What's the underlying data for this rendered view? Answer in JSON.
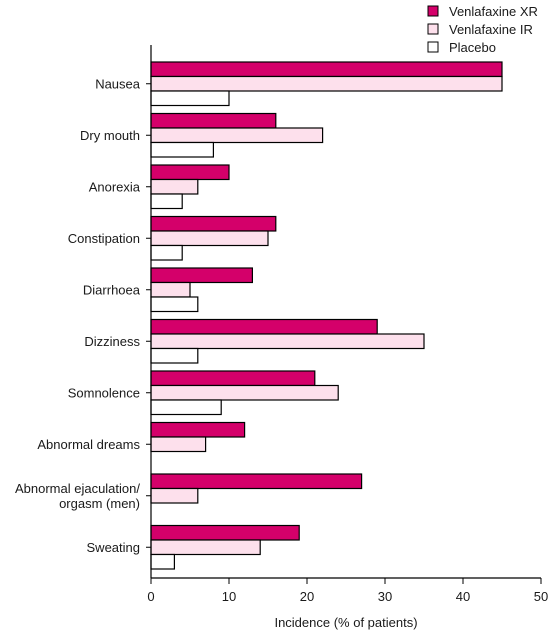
{
  "chart_data": {
    "type": "bar",
    "orientation": "horizontal",
    "categories": [
      [
        "Nausea"
      ],
      [
        "Dry mouth"
      ],
      [
        "Anorexia"
      ],
      [
        "Constipation"
      ],
      [
        "Diarrhoea"
      ],
      [
        "Dizziness"
      ],
      [
        "Somnolence"
      ],
      [
        "Abnormal dreams"
      ],
      [
        "Abnormal ejaculation/",
        "orgasm (men)"
      ],
      [
        "Sweating"
      ]
    ],
    "series": [
      {
        "name": "Venlafaxine XR",
        "color": "#d4006a",
        "values": [
          45,
          16,
          10,
          16,
          13,
          29,
          21,
          12,
          27,
          19
        ]
      },
      {
        "name": "Venlafaxine IR",
        "color": "#fde0ec",
        "values": [
          45,
          22,
          6,
          15,
          5,
          35,
          24,
          7,
          6,
          14
        ]
      },
      {
        "name": "Placebo",
        "color": "#ffffff",
        "values": [
          10,
          8,
          4,
          4,
          6,
          6,
          9,
          0,
          0,
          3
        ]
      }
    ],
    "xlabel": "Incidence (% of patients)",
    "xlim": [
      0,
      50
    ],
    "xticks": [
      0,
      10,
      20,
      30,
      40,
      50
    ],
    "legend_position": "top-right",
    "grid": false
  }
}
